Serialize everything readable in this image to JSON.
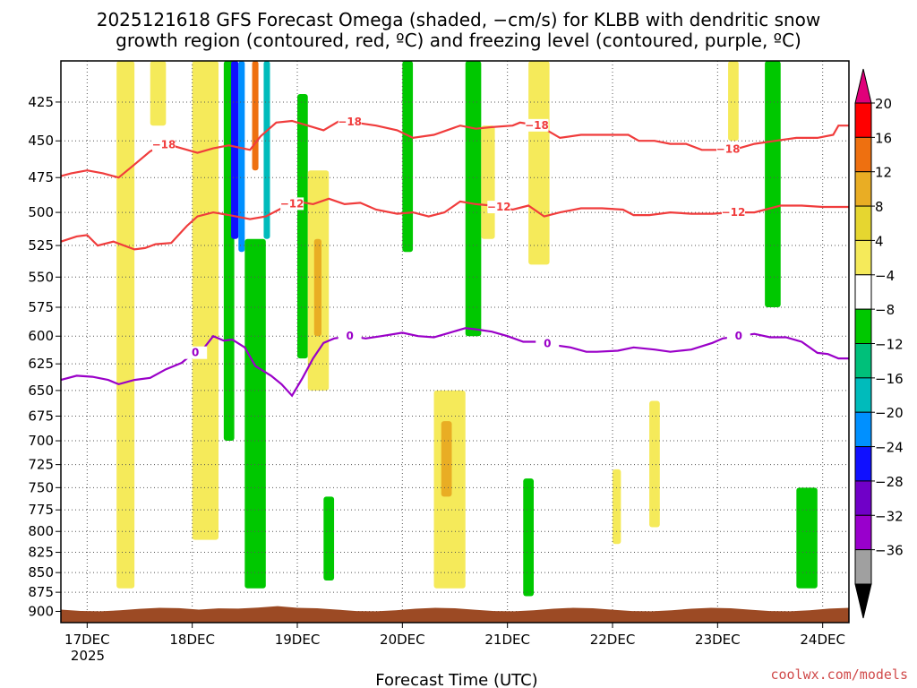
{
  "chart_data": {
    "type": "heatmap",
    "title_lines": [
      "2025121618 GFS Forecast Omega (shaded, −cm/s) for KLBB with dendritic snow",
      "growth region (contoured, red, ºC) and freezing level (contoured, purple, ºC)"
    ],
    "xlabel": "Forecast Time (UTC)",
    "credit": "coolwx.com/models",
    "x_range_days": [
      16.75,
      24.25
    ],
    "x_ticks": [
      {
        "day": 17,
        "label": "17DEC"
      },
      {
        "day": 18,
        "label": "18DEC"
      },
      {
        "day": 19,
        "label": "19DEC"
      },
      {
        "day": 20,
        "label": "20DEC"
      },
      {
        "day": 21,
        "label": "21DEC"
      },
      {
        "day": 22,
        "label": "22DEC"
      },
      {
        "day": 23,
        "label": "23DEC"
      },
      {
        "day": 24,
        "label": "24DEC"
      }
    ],
    "year_label": "2025",
    "y_range_hpa": [
      400,
      915
    ],
    "y_ticks": [
      425,
      450,
      475,
      500,
      525,
      550,
      575,
      600,
      625,
      650,
      675,
      700,
      725,
      750,
      775,
      800,
      825,
      850,
      875,
      900
    ],
    "colorbar": {
      "labels": [
        "20",
        "16",
        "12",
        "8",
        "4",
        "−4",
        "−8",
        "−12",
        "−16",
        "−20",
        "−24",
        "−28",
        "−32",
        "−36"
      ],
      "colors": [
        "#ff0000",
        "#ee7010",
        "#e9ad24",
        "#e6d630",
        "#f5ea5a",
        "#ffffff",
        "#00c800",
        "#00c07a",
        "#00bbbb",
        "#0090ff",
        "#1010ff",
        "#7000c8",
        "#9900cc",
        "#a0a0a0"
      ],
      "top_color": "#e0007a",
      "bottom_color": "#000000"
    },
    "series": [
      {
        "name": "-18 ºC isotherm",
        "color": "#f03c3c",
        "label": "−18",
        "label_days": [
          17.73,
          19.5,
          21.28,
          23.1
        ],
        "points": [
          [
            16.75,
            474
          ],
          [
            16.85,
            472
          ],
          [
            17.0,
            470
          ],
          [
            17.15,
            472
          ],
          [
            17.3,
            475
          ],
          [
            17.45,
            466
          ],
          [
            17.6,
            457
          ],
          [
            17.75,
            452
          ],
          [
            17.9,
            455
          ],
          [
            18.05,
            458
          ],
          [
            18.2,
            455
          ],
          [
            18.35,
            453
          ],
          [
            18.55,
            456
          ],
          [
            18.65,
            447
          ],
          [
            18.8,
            438
          ],
          [
            18.95,
            437
          ],
          [
            19.1,
            440
          ],
          [
            19.25,
            443
          ],
          [
            19.4,
            437
          ],
          [
            19.55,
            438
          ],
          [
            19.75,
            440
          ],
          [
            19.95,
            443
          ],
          [
            20.1,
            448
          ],
          [
            20.3,
            446
          ],
          [
            20.55,
            440
          ],
          [
            20.7,
            442
          ],
          [
            20.85,
            441
          ],
          [
            21.05,
            440
          ],
          [
            21.12,
            438
          ],
          [
            21.3,
            440
          ],
          [
            21.5,
            448
          ],
          [
            21.7,
            446
          ],
          [
            21.9,
            446
          ],
          [
            22.15,
            446
          ],
          [
            22.25,
            450
          ],
          [
            22.4,
            450
          ],
          [
            22.55,
            452
          ],
          [
            22.7,
            452
          ],
          [
            22.85,
            456
          ],
          [
            23.05,
            456
          ],
          [
            23.2,
            455
          ],
          [
            23.35,
            452
          ],
          [
            23.55,
            450
          ],
          [
            23.75,
            448
          ],
          [
            23.95,
            448
          ],
          [
            24.1,
            446
          ],
          [
            24.15,
            440
          ],
          [
            24.25,
            440
          ]
        ]
      },
      {
        "name": "-12 ºC isotherm",
        "color": "#f03c3c",
        "label": "−12",
        "label_days": [
          18.95,
          20.92,
          23.15
        ],
        "points": [
          [
            16.75,
            522
          ],
          [
            16.9,
            518
          ],
          [
            17.0,
            517
          ],
          [
            17.1,
            525
          ],
          [
            17.25,
            522
          ],
          [
            17.45,
            528
          ],
          [
            17.55,
            527
          ],
          [
            17.65,
            524
          ],
          [
            17.8,
            523
          ],
          [
            17.95,
            510
          ],
          [
            18.05,
            503
          ],
          [
            18.2,
            500
          ],
          [
            18.35,
            502
          ],
          [
            18.55,
            505
          ],
          [
            18.7,
            503
          ],
          [
            18.85,
            497
          ],
          [
            19.0,
            492
          ],
          [
            19.15,
            494
          ],
          [
            19.3,
            490
          ],
          [
            19.45,
            494
          ],
          [
            19.6,
            493
          ],
          [
            19.75,
            498
          ],
          [
            19.95,
            501
          ],
          [
            20.1,
            500
          ],
          [
            20.25,
            503
          ],
          [
            20.4,
            500
          ],
          [
            20.55,
            492
          ],
          [
            20.7,
            494
          ],
          [
            20.85,
            495
          ],
          [
            21.05,
            498
          ],
          [
            21.2,
            495
          ],
          [
            21.35,
            503
          ],
          [
            21.5,
            500
          ],
          [
            21.7,
            497
          ],
          [
            21.9,
            497
          ],
          [
            22.1,
            498
          ],
          [
            22.2,
            502
          ],
          [
            22.35,
            502
          ],
          [
            22.55,
            500
          ],
          [
            22.75,
            501
          ],
          [
            22.95,
            501
          ],
          [
            23.15,
            500
          ],
          [
            23.35,
            500
          ],
          [
            23.6,
            495
          ],
          [
            23.8,
            495
          ],
          [
            24.0,
            496
          ],
          [
            24.25,
            496
          ]
        ]
      },
      {
        "name": "0 ºC freezing level",
        "color": "#9a00c8",
        "label": "0",
        "label_days": [
          18.03,
          19.5,
          21.38,
          23.2
        ],
        "points": [
          [
            16.75,
            640
          ],
          [
            16.9,
            636
          ],
          [
            17.05,
            637
          ],
          [
            17.2,
            640
          ],
          [
            17.3,
            644
          ],
          [
            17.45,
            640
          ],
          [
            17.6,
            638
          ],
          [
            17.75,
            630
          ],
          [
            17.9,
            624
          ],
          [
            18.0,
            616
          ],
          [
            18.1,
            612
          ],
          [
            18.2,
            600
          ],
          [
            18.3,
            604
          ],
          [
            18.38,
            603
          ],
          [
            18.5,
            610
          ],
          [
            18.6,
            627
          ],
          [
            18.75,
            636
          ],
          [
            18.85,
            644
          ],
          [
            18.95,
            655
          ],
          [
            19.05,
            638
          ],
          [
            19.15,
            620
          ],
          [
            19.25,
            606
          ],
          [
            19.35,
            602
          ],
          [
            19.5,
            600
          ],
          [
            19.65,
            602
          ],
          [
            19.8,
            600
          ],
          [
            20.0,
            597
          ],
          [
            20.15,
            600
          ],
          [
            20.3,
            601
          ],
          [
            20.45,
            597
          ],
          [
            20.6,
            593
          ],
          [
            20.7,
            594
          ],
          [
            20.85,
            596
          ],
          [
            21.0,
            600
          ],
          [
            21.15,
            605
          ],
          [
            21.3,
            605
          ],
          [
            21.45,
            608
          ],
          [
            21.6,
            610
          ],
          [
            21.75,
            614
          ],
          [
            21.85,
            614
          ],
          [
            22.05,
            613
          ],
          [
            22.2,
            610
          ],
          [
            22.4,
            612
          ],
          [
            22.55,
            614
          ],
          [
            22.75,
            612
          ],
          [
            22.95,
            606
          ],
          [
            23.05,
            602
          ],
          [
            23.2,
            600
          ],
          [
            23.35,
            598
          ],
          [
            23.5,
            601
          ],
          [
            23.65,
            601
          ],
          [
            23.8,
            605
          ],
          [
            23.95,
            615
          ],
          [
            24.05,
            616
          ],
          [
            24.15,
            620
          ],
          [
            24.25,
            620
          ]
        ]
      }
    ],
    "shaded_regions": [
      {
        "color": "#f5ea5a",
        "day_start": 17.28,
        "day_end": 17.45,
        "p_top": 400,
        "p_bottom": 870
      },
      {
        "color": "#f5ea5a",
        "day_start": 17.6,
        "day_end": 17.75,
        "p_top": 400,
        "p_bottom": 440
      },
      {
        "color": "#f5ea5a",
        "day_start": 18.0,
        "day_end": 18.25,
        "p_top": 400,
        "p_bottom": 810
      },
      {
        "color": "#00c800",
        "day_start": 18.3,
        "day_end": 18.4,
        "p_top": 400,
        "p_bottom": 700
      },
      {
        "color": "#1010ff",
        "day_start": 18.37,
        "day_end": 18.44,
        "p_top": 400,
        "p_bottom": 520
      },
      {
        "color": "#0090ff",
        "day_start": 18.44,
        "day_end": 18.5,
        "p_top": 400,
        "p_bottom": 530
      },
      {
        "color": "#ee7010",
        "day_start": 18.57,
        "day_end": 18.63,
        "p_top": 400,
        "p_bottom": 470
      },
      {
        "color": "#00bbbb",
        "day_start": 18.68,
        "day_end": 18.74,
        "p_top": 400,
        "p_bottom": 520
      },
      {
        "color": "#00c800",
        "day_start": 18.5,
        "day_end": 18.7,
        "p_top": 520,
        "p_bottom": 870
      },
      {
        "color": "#00c800",
        "day_start": 19.0,
        "day_end": 19.1,
        "p_top": 420,
        "p_bottom": 620
      },
      {
        "color": "#f5ea5a",
        "day_start": 19.1,
        "day_end": 19.3,
        "p_top": 470,
        "p_bottom": 650
      },
      {
        "color": "#e9ad24",
        "day_start": 19.16,
        "day_end": 19.23,
        "p_top": 520,
        "p_bottom": 600
      },
      {
        "color": "#00c800",
        "day_start": 19.25,
        "day_end": 19.35,
        "p_top": 760,
        "p_bottom": 860
      },
      {
        "color": "#00c800",
        "day_start": 20.0,
        "day_end": 20.1,
        "p_top": 400,
        "p_bottom": 530
      },
      {
        "color": "#f5ea5a",
        "day_start": 20.3,
        "day_end": 20.6,
        "p_top": 650,
        "p_bottom": 870
      },
      {
        "color": "#e9ad24",
        "day_start": 20.37,
        "day_end": 20.47,
        "p_top": 680,
        "p_bottom": 760
      },
      {
        "color": "#00c800",
        "day_start": 20.6,
        "day_end": 20.75,
        "p_top": 400,
        "p_bottom": 600
      },
      {
        "color": "#f5ea5a",
        "day_start": 20.75,
        "day_end": 20.88,
        "p_top": 440,
        "p_bottom": 520
      },
      {
        "color": "#00c800",
        "day_start": 21.15,
        "day_end": 21.25,
        "p_top": 740,
        "p_bottom": 880
      },
      {
        "color": "#f5ea5a",
        "day_start": 21.2,
        "day_end": 21.4,
        "p_top": 400,
        "p_bottom": 540
      },
      {
        "color": "#f5ea5a",
        "day_start": 22.0,
        "day_end": 22.08,
        "p_top": 730,
        "p_bottom": 815
      },
      {
        "color": "#f5ea5a",
        "day_start": 22.35,
        "day_end": 22.45,
        "p_top": 660,
        "p_bottom": 795
      },
      {
        "color": "#f5ea5a",
        "day_start": 23.1,
        "day_end": 23.2,
        "p_top": 400,
        "p_bottom": 450
      },
      {
        "color": "#00c800",
        "day_start": 23.45,
        "day_end": 23.6,
        "p_top": 400,
        "p_bottom": 575
      },
      {
        "color": "#00c800",
        "day_start": 23.75,
        "day_end": 23.95,
        "p_top": 750,
        "p_bottom": 870
      }
    ],
    "terrain": {
      "color": "#9c4a24",
      "surface_hpa": 900
    }
  }
}
